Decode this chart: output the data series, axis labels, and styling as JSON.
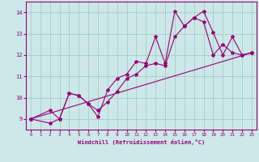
{
  "background_color": "#cce8e8",
  "grid_color": "#aacccc",
  "line_color": "#990077",
  "xlim": [
    -0.5,
    23.5
  ],
  "ylim": [
    8.5,
    14.5
  ],
  "yticks": [
    9,
    10,
    11,
    12,
    13,
    14
  ],
  "xticks": [
    0,
    1,
    2,
    3,
    4,
    5,
    6,
    7,
    8,
    9,
    10,
    11,
    12,
    13,
    14,
    15,
    16,
    17,
    18,
    19,
    20,
    21,
    22,
    23
  ],
  "xlabel": "Windchill (Refroidissement éolien,°C)",
  "line1_x": [
    0,
    2,
    3,
    4,
    5,
    6,
    7,
    8,
    9,
    10,
    11,
    12,
    13,
    14,
    15,
    16,
    17,
    18,
    19,
    20,
    21,
    22,
    23
  ],
  "line1_y": [
    9.0,
    9.4,
    9.0,
    10.2,
    10.1,
    9.7,
    9.1,
    10.35,
    10.9,
    11.1,
    11.7,
    11.6,
    12.85,
    11.6,
    14.05,
    13.35,
    13.75,
    14.05,
    13.05,
    12.0,
    12.85,
    12.0,
    12.1
  ],
  "line2_x": [
    0,
    2,
    3,
    4,
    5,
    6,
    7,
    8,
    9,
    10,
    11,
    12,
    13,
    14,
    15,
    16,
    17,
    18,
    19,
    20,
    21,
    22,
    23
  ],
  "line2_y": [
    9.0,
    8.8,
    9.0,
    10.2,
    10.1,
    9.7,
    9.4,
    9.8,
    10.3,
    10.9,
    11.1,
    11.5,
    11.6,
    11.5,
    12.85,
    13.35,
    13.75,
    13.55,
    12.0,
    12.5,
    12.1,
    12.0,
    12.1
  ],
  "line3_x": [
    0,
    23
  ],
  "line3_y": [
    9.0,
    12.1
  ],
  "marker": "*",
  "markersize": 3,
  "linewidth": 0.8
}
